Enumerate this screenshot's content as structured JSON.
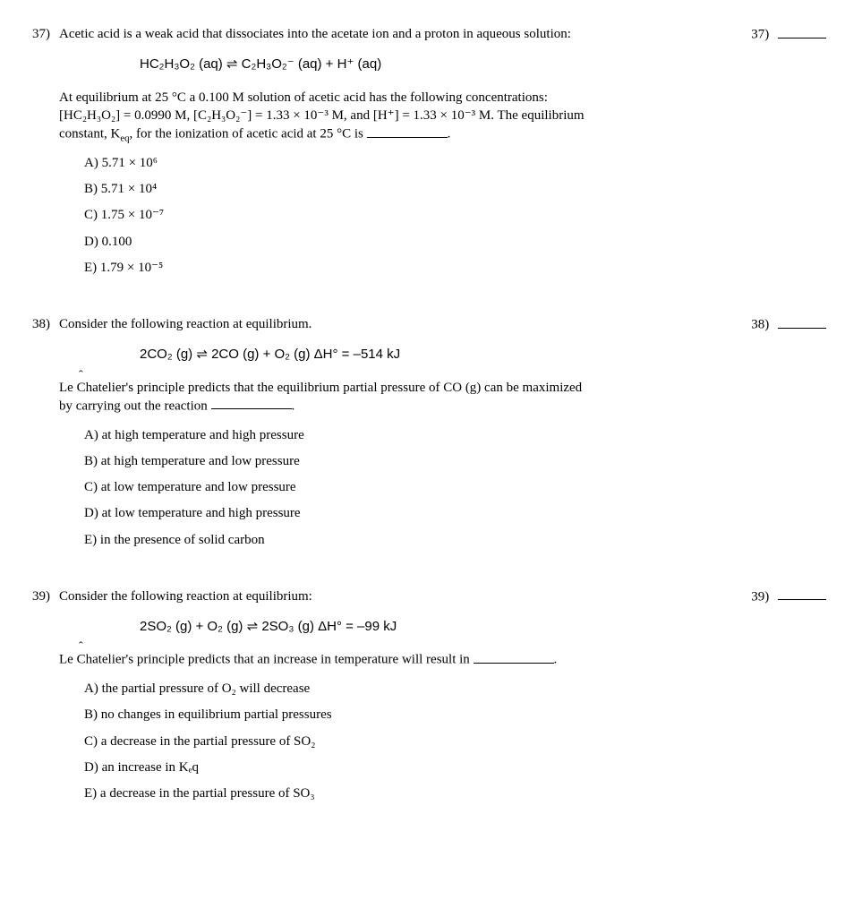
{
  "questions": [
    {
      "number": "37)",
      "answer_label": "37)",
      "intro": "Acetic acid is a weak acid that dissociates into the acetate ion and a proton in aqueous solution:",
      "equation": "HC₂H₃O₂ (aq)  ⇌  C₂H₃O₂⁻ (aq)  +  H⁺ (aq)",
      "para1": "At equilibrium at 25 °C a 0.100 M solution of acetic acid has the following concentrations:",
      "para2_pre": "[HC₂H₃O₂] = 0.0990 M, [C₂H₃O₂⁻] = 1.33 × 10⁻³ M, and [H⁺] = 1.33 × 10⁻³ M. The equilibrium",
      "para3_pre": "constant, K",
      "para3_sub": "eq",
      "para3_mid": ", for the ionization of acetic acid at 25 °C is ",
      "para3_post": ".",
      "choices": [
        "A) 5.71 × 10⁶",
        "B) 5.71 × 10⁴",
        "C) 1.75 × 10⁻⁷",
        "D) 0.100",
        "E) 1.79 × 10⁻⁵"
      ]
    },
    {
      "number": "38)",
      "answer_label": "38)",
      "intro": "Consider the following reaction at equilibrium.",
      "equation": "2CO₂ (g)  ⇌  2CO (g)  +  O₂ (g)      ΔH° = –514 kJ",
      "para1_pre": "Le Chatelier's principle predicts that the equilibrium partial pressure of CO (g) can be maximized",
      "para2_pre": "by carrying out the reaction ",
      "para2_post": ".",
      "choices": [
        "A) at high temperature and high pressure",
        "B) at high temperature and low pressure",
        "C) at low temperature and low pressure",
        "D) at low temperature and high pressure",
        "E) in the presence of solid carbon"
      ]
    },
    {
      "number": "39)",
      "answer_label": "39)",
      "intro": "Consider the following reaction at equilibrium:",
      "equation": "2SO₂ (g)  +  O₂ (g)  ⇌  2SO₃ (g)     ΔH° = –99 kJ",
      "para1_pre": "Le Chatelier's principle predicts that an increase in temperature will result in ",
      "para1_post": ".",
      "choices": [
        "A) the partial pressure of O₂ will decrease",
        "B) no changes in equilibrium partial pressures",
        "C) a decrease in the partial pressure of SO₂",
        "D) an increase in Kₑq",
        "E) a decrease in the partial pressure of SO₃"
      ]
    }
  ]
}
